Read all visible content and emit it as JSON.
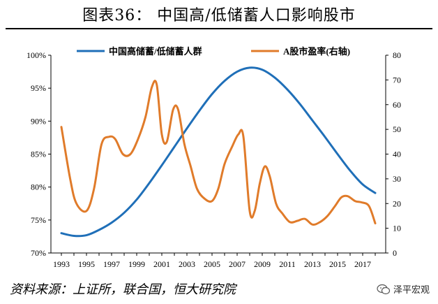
{
  "title": "图表36：  中国高/低储蓄人口影响股市",
  "source": "资料来源：上证所，联合国，恒大研究院",
  "brand": {
    "name": "泽平宏观",
    "icon": "wechat-icon"
  },
  "chart_data": {
    "type": "line",
    "x": [
      1993,
      1994,
      1995,
      1996,
      1997,
      1998,
      1999,
      2000,
      2001,
      2002,
      2003,
      2004,
      2005,
      2006,
      2007,
      2008,
      2009,
      2010,
      2011,
      2012,
      2013,
      2014,
      2015,
      2016,
      2017,
      2018
    ],
    "x_ticks": [
      "1993",
      "1995",
      "1997",
      "1999",
      "2001",
      "2003",
      "2005",
      "2007",
      "2009",
      "2011",
      "2013",
      "2015",
      "2017"
    ],
    "y_left": {
      "ticks": [
        "70%",
        "75%",
        "80%",
        "85%",
        "90%",
        "95%",
        "100%"
      ],
      "ylim": [
        70,
        100
      ]
    },
    "y_right": {
      "ticks": [
        "0",
        "10",
        "20",
        "30",
        "40",
        "50",
        "60",
        "70",
        "80"
      ],
      "ylim": [
        0,
        80
      ]
    },
    "series": [
      {
        "name": "中国高储蓄/低储蓄人群",
        "axis": "left",
        "color": "#1f6fb8",
        "x": [
          1993,
          1994,
          1995,
          1996,
          1997,
          1998,
          1999,
          2000,
          2001,
          2002,
          2003,
          2004,
          2005,
          2006,
          2007,
          2008,
          2009,
          2010,
          2011,
          2012,
          2013,
          2014,
          2015,
          2016,
          2017,
          2018
        ],
        "values": [
          73.0,
          72.6,
          72.7,
          73.5,
          74.6,
          76.1,
          78.1,
          80.6,
          83.3,
          86.1,
          88.9,
          91.6,
          94.1,
          96.1,
          97.5,
          98.1,
          97.8,
          96.6,
          94.8,
          92.6,
          90.1,
          87.6,
          85.0,
          82.5,
          80.4,
          79.1
        ]
      },
      {
        "name": "A股市盈率(右轴)",
        "axis": "right",
        "color": "#e07b2a",
        "x": [
          1993,
          1993.7,
          1994.2,
          1995,
          1995.6,
          1996.2,
          1996.8,
          1997.3,
          1997.9,
          1998.5,
          1999.1,
          1999.7,
          2000.2,
          2000.6,
          2001.0,
          2001.4,
          2001.9,
          2002.3,
          2002.8,
          2003.3,
          2003.8,
          2004.4,
          2005.0,
          2005.5,
          2006.0,
          2006.6,
          2007.1,
          2007.5,
          2008.0,
          2008.4,
          2008.8,
          2009.2,
          2009.6,
          2010.1,
          2010.6,
          2011.2,
          2011.8,
          2012.4,
          2013.0,
          2013.6,
          2014.2,
          2014.8,
          2015.3,
          2015.8,
          2016.4,
          2016.9,
          2017.5,
          2018.0
        ],
        "values": [
          51,
          30,
          20,
          17,
          26,
          44,
          47,
          46,
          40,
          40,
          46,
          55,
          67,
          68,
          48,
          45,
          58,
          58,
          44,
          35,
          26,
          22,
          21,
          26,
          36,
          43,
          48,
          47,
          17,
          17,
          28,
          35,
          31,
          20,
          16,
          12.5,
          13,
          13.8,
          11.5,
          12.5,
          15,
          19,
          22.5,
          23,
          21,
          20.5,
          19,
          12
        ]
      }
    ],
    "xlabel": "",
    "ylabel": "",
    "grid": false,
    "legend": "top-center"
  }
}
